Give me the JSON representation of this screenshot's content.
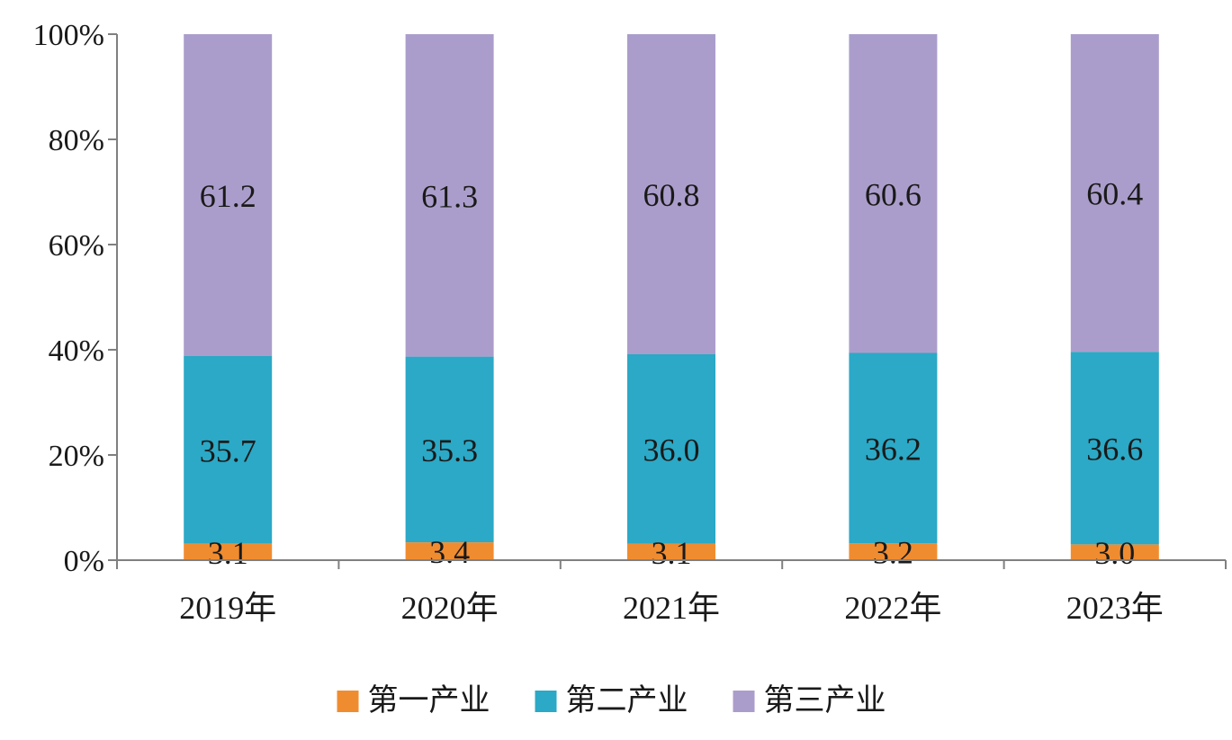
{
  "chart_data": {
    "type": "bar",
    "stacked": true,
    "percent_stacked": true,
    "categories": [
      "2019年",
      "2020年",
      "2021年",
      "2022年",
      "2023年"
    ],
    "series": [
      {
        "name": "第一产业",
        "color": "#f08c30",
        "values": [
          3.1,
          3.4,
          3.1,
          3.2,
          3.0
        ]
      },
      {
        "name": "第二产业",
        "color": "#2ba9c6",
        "values": [
          35.7,
          35.3,
          36.0,
          36.2,
          36.6
        ]
      },
      {
        "name": "第三产业",
        "color": "#ab9dcb",
        "values": [
          61.2,
          61.3,
          60.8,
          60.6,
          60.4
        ]
      }
    ],
    "data_labels": [
      [
        "3.1",
        "3.4",
        "3.1",
        "3.2",
        "3.0"
      ],
      [
        "35.7",
        "35.3",
        "36.0",
        "36.2",
        "36.6"
      ],
      [
        "61.2",
        "61.3",
        "60.8",
        "60.6",
        "60.4"
      ]
    ],
    "y_ticks": [
      "0%",
      "20%",
      "40%",
      "60%",
      "80%",
      "100%"
    ],
    "ylim": [
      0,
      100
    ],
    "title": "",
    "xlabel": "",
    "ylabel": "",
    "grid": false,
    "legend_position": "bottom"
  }
}
